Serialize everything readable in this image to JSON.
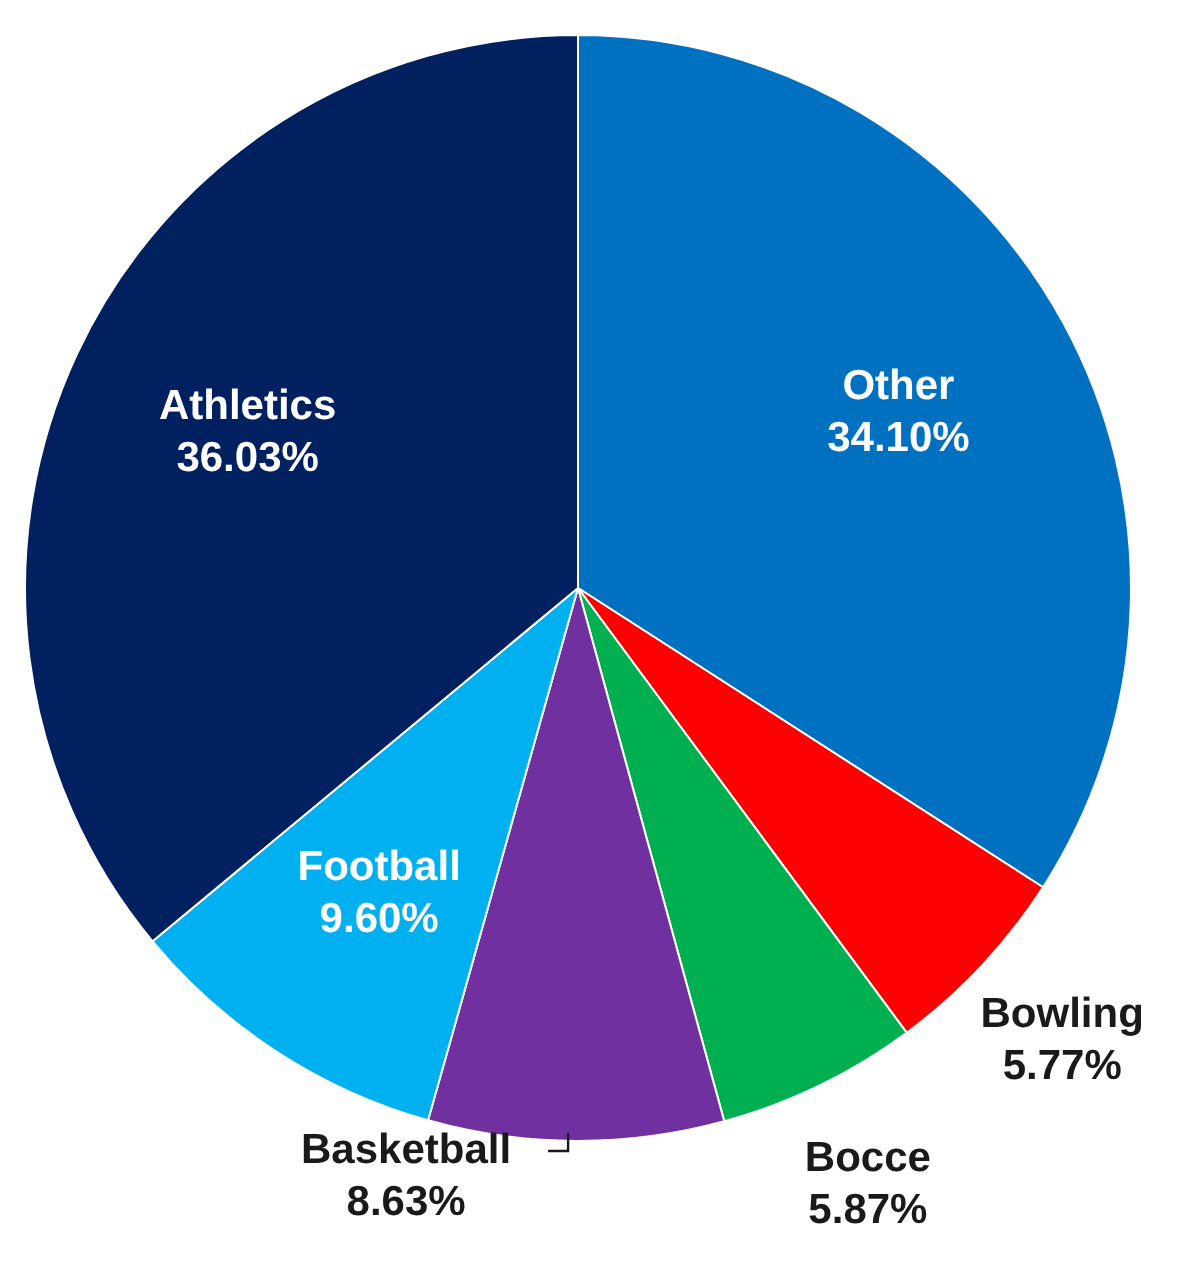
{
  "chart_data": {
    "type": "pie",
    "categories": [
      "Other",
      "Bowling",
      "Bocce",
      "Basketball",
      "Football",
      "Athletics"
    ],
    "values": [
      34.1,
      5.77,
      5.87,
      8.63,
      9.6,
      36.03
    ],
    "colors": [
      "#0070c0",
      "#ff0000",
      "#00b050",
      "#7030a0",
      "#00b0f0",
      "#002060"
    ],
    "value_labels": [
      "34.10%",
      "5.77%",
      "5.87%",
      "8.63%",
      "9.60%",
      "36.03%"
    ],
    "legend": false
  }
}
